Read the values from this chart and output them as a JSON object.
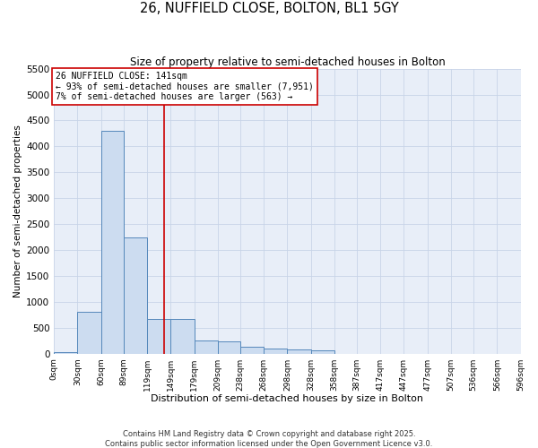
{
  "title": "26, NUFFIELD CLOSE, BOLTON, BL1 5GY",
  "subtitle": "Size of property relative to semi-detached houses in Bolton",
  "xlabel": "Distribution of semi-detached houses by size in Bolton",
  "ylabel": "Number of semi-detached properties",
  "footer_line1": "Contains HM Land Registry data © Crown copyright and database right 2025.",
  "footer_line2": "Contains public sector information licensed under the Open Government Licence v3.0.",
  "property_label": "26 NUFFIELD CLOSE: 141sqm",
  "smaller_label": "← 93% of semi-detached houses are smaller (7,951)",
  "larger_label": "7% of semi-detached houses are larger (563) →",
  "property_size": 141,
  "bin_starts": [
    0,
    30,
    60,
    89,
    119,
    149,
    179,
    209,
    238,
    268,
    298,
    328,
    358,
    387,
    417,
    447,
    477,
    507,
    536,
    566,
    596
  ],
  "bin_labels": [
    "0sqm",
    "30sqm",
    "60sqm",
    "89sqm",
    "119sqm",
    "149sqm",
    "179sqm",
    "209sqm",
    "238sqm",
    "268sqm",
    "298sqm",
    "328sqm",
    "358sqm",
    "387sqm",
    "417sqm",
    "447sqm",
    "477sqm",
    "507sqm",
    "536sqm",
    "566sqm",
    "596sqm"
  ],
  "bar_values": [
    20,
    800,
    4300,
    2250,
    670,
    670,
    250,
    240,
    130,
    100,
    80,
    60,
    0,
    0,
    0,
    0,
    0,
    0,
    0,
    0
  ],
  "bar_color": "#ccdcf0",
  "bar_edge_color": "#5588bb",
  "vline_color": "#cc0000",
  "vline_x": 141,
  "grid_color": "#c8d4e8",
  "bg_color": "#e8eef8",
  "ylim": [
    0,
    5500
  ],
  "yticks": [
    0,
    500,
    1000,
    1500,
    2000,
    2500,
    3000,
    3500,
    4000,
    4500,
    5000,
    5500
  ],
  "annotation_box_color": "#cc0000",
  "figsize": [
    6.0,
    5.0
  ],
  "dpi": 100
}
